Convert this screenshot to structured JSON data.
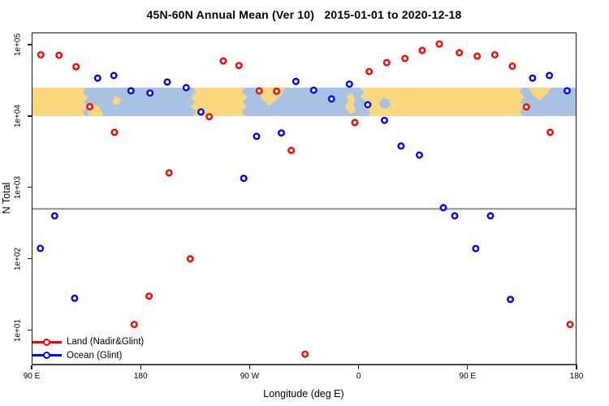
{
  "title": "45N-60N Annual Mean (Ver 10)   2015-01-01 to 2020-12-18",
  "y_axis": {
    "label": "N Total",
    "ticks": [
      "1e+05",
      "1e+04",
      "1e+03",
      "1e+02",
      "1e+01"
    ]
  },
  "x_axis": {
    "label": "Longitude (deg E)",
    "ticks": [
      "90 E",
      "180",
      "90 W",
      "0",
      "90 E",
      "180"
    ]
  },
  "legend": {
    "items": [
      {
        "label": "Land (Nadir&Glint)",
        "color": "#ff0000"
      },
      {
        "label": "Ocean (Glint)",
        "color": "#0000ff"
      }
    ]
  },
  "colors": {
    "land_series": "#ff0000",
    "ocean_series": "#0000ff",
    "band_land": "#FBD87D",
    "band_ocean": "#A9C1E3",
    "reference_line": "#9a9a9a",
    "axis_line": "#4a4a4a",
    "box": "#1a1a1a"
  },
  "chart_data": {
    "type": "scatter",
    "title": "45N-60N Annual Mean (Ver 10)   2015-01-01 to 2020-12-18",
    "xlabel": "Longitude (deg E)",
    "ylabel": "N Total",
    "y_scale": "log10",
    "y_tick_values": [
      100000,
      10000,
      1000,
      100,
      10
    ],
    "x_axis_deg_span": [
      90,
      540
    ],
    "x_tick_positions_deg": [
      90,
      180,
      270,
      360,
      450,
      540
    ],
    "x_tick_labels": [
      "90 E",
      "180",
      "90 W",
      "0",
      "90 E",
      "180"
    ],
    "reference_line_value": 500,
    "map_band": {
      "value_range": [
        10000,
        25000
      ],
      "land_color": "#FBD87D",
      "ocean_color": "#A9C1E3",
      "ocean_segments_deg": [
        {
          "from": 134.3,
          "to_top": 223.5,
          "to_bottom": 223.5
        },
        {
          "from": 265.7,
          "to_top": 361.0,
          "to_bottom": 368.5
        },
        {
          "from": 495.0,
          "to_top": 540.0,
          "to_bottom": 540.0
        }
      ],
      "islands_deg": [
        [
          [
            136.3,
            1
          ],
          [
            137.6,
            0.72
          ],
          [
            141,
            0.58
          ],
          [
            145.7,
            0.67
          ],
          [
            147.7,
            0.84
          ],
          [
            149,
            1
          ]
        ],
        [
          [
            157,
            0.46
          ],
          [
            159,
            0.29
          ],
          [
            162.4,
            0.35
          ],
          [
            163.8,
            0.49
          ],
          [
            160.4,
            0.61
          ],
          [
            157.7,
            0.58
          ]
        ],
        [
          [
            277.8,
            0
          ],
          [
            299.2,
            0
          ],
          [
            296.5,
            0.23
          ],
          [
            291.2,
            0.46
          ],
          [
            285.8,
            0.64
          ],
          [
            280.4,
            0.41
          ],
          [
            277.8,
            0.17
          ]
        ],
        [
          [
            350.2,
            0.29
          ],
          [
            354.2,
            0.17
          ],
          [
            356.9,
            0.41
          ],
          [
            355.5,
            0.64
          ],
          [
            358.2,
            0.81
          ],
          [
            352.9,
            0.93
          ],
          [
            348.8,
            0.7
          ],
          [
            351.5,
            0.46
          ]
        ],
        [
          [
            500.4,
            0
          ],
          [
            519.2,
            0
          ],
          [
            515.2,
            0.23
          ],
          [
            509.8,
            0.46
          ],
          [
            504.4,
            0.29
          ]
        ]
      ],
      "lakes_deg": [
        [
          [
            377,
            0.52
          ],
          [
            380.4,
            0.35
          ],
          [
            385.1,
            0.43
          ],
          [
            386.4,
            0.64
          ],
          [
            382.4,
            0.75
          ],
          [
            378.4,
            0.7
          ]
        ]
      ]
    },
    "series": [
      {
        "name": "Land (Nadir&Glint)",
        "color": "#ff0000",
        "points": [
          [
            97.6,
            72000
          ],
          [
            112.6,
            71000
          ],
          [
            126.7,
            49000
          ],
          [
            138.0,
            13500
          ],
          [
            158.4,
            5900
          ],
          [
            174.7,
            12
          ],
          [
            187.0,
            30
          ],
          [
            203.5,
            1600
          ],
          [
            221.0,
            100
          ],
          [
            236.7,
            9800
          ],
          [
            248.3,
            59000
          ],
          [
            261.2,
            51000
          ],
          [
            278.0,
            22500
          ],
          [
            292.3,
            22300
          ],
          [
            304.4,
            3300
          ],
          [
            315.8,
            4.6
          ],
          [
            356.9,
            8100
          ],
          [
            368.8,
            42000
          ],
          [
            383.3,
            56000
          ],
          [
            398.3,
            64000
          ],
          [
            412.6,
            83000
          ],
          [
            426.7,
            102000
          ],
          [
            443.2,
            77000
          ],
          [
            458.0,
            69000
          ],
          [
            472.5,
            72000
          ],
          [
            487.0,
            50000
          ],
          [
            498.6,
            13400
          ],
          [
            518.3,
            5900
          ],
          [
            534.7,
            12
          ]
        ]
      },
      {
        "name": "Ocean (Glint)",
        "color": "#0000ff",
        "points": [
          [
            97.2,
            140
          ],
          [
            109.0,
            400
          ],
          [
            125.5,
            28
          ],
          [
            144.5,
            34000
          ],
          [
            157.9,
            37000
          ],
          [
            172.0,
            22600
          ],
          [
            187.7,
            21000
          ],
          [
            202.0,
            30000
          ],
          [
            217.6,
            25000
          ],
          [
            229.8,
            11400
          ],
          [
            265.2,
            1340
          ],
          [
            275.8,
            5200
          ],
          [
            296.2,
            5800
          ],
          [
            308.2,
            30500
          ],
          [
            322.9,
            23000
          ],
          [
            337.7,
            17400
          ],
          [
            352.4,
            28000
          ],
          [
            367.6,
            14400
          ],
          [
            381.4,
            8700
          ],
          [
            395.1,
            3800
          ],
          [
            410.2,
            2840
          ],
          [
            430.0,
            520
          ],
          [
            439.4,
            400
          ],
          [
            456.8,
            139
          ],
          [
            468.9,
            400
          ],
          [
            485.4,
            27
          ],
          [
            503.7,
            34000
          ],
          [
            517.6,
            37000
          ],
          [
            532.2,
            22600
          ]
        ]
      }
    ]
  }
}
